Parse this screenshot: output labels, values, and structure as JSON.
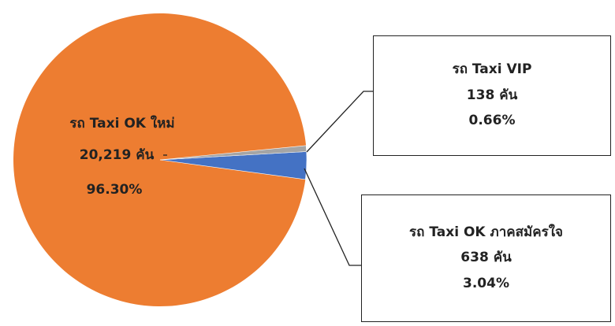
{
  "chart_data": {
    "type": "pie",
    "slices": [
      {
        "name": "รถ Taxi OK ใหม่",
        "value": 20219,
        "value_text": "20,219 คัน",
        "percent": 96.3,
        "percent_text": "96.30%",
        "color": "#ED7D31"
      },
      {
        "name": "รถ Taxi OK ภาคสมัครใจ",
        "value": 638,
        "value_text": "638 คัน",
        "percent": 3.04,
        "percent_text": "3.04%",
        "color": "#4472C4"
      },
      {
        "name": "รถ Taxi VIP",
        "value": 138,
        "value_text": "138 คัน",
        "percent": 0.66,
        "percent_text": "0.66%",
        "color": "#A5A5A5"
      }
    ]
  }
}
